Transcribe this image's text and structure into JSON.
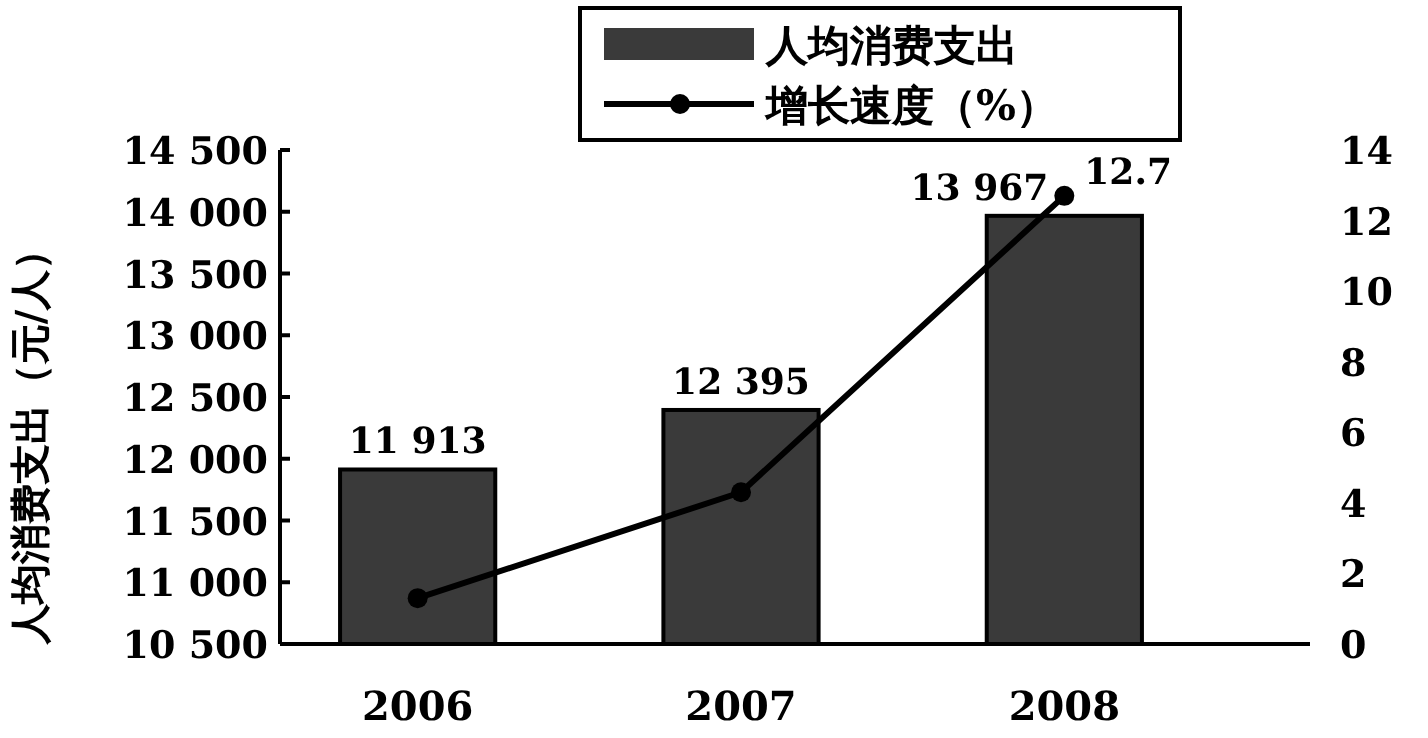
{
  "chart_data": {
    "type": "bar",
    "ylabel": "人均消费支出（元/人）",
    "categories": [
      "2006",
      "2007",
      "2008"
    ],
    "series": [
      {
        "name": "人均消费支出",
        "color": "#3a3a3a",
        "values": [
          11913,
          12395,
          13967
        ],
        "value_labels": [
          "11 913",
          "12 395",
          "13 967"
        ]
      },
      {
        "name": "增长速度（%）",
        "type": "line",
        "axis": "y2",
        "color": "#000000",
        "marker": "circle",
        "values": [
          1.3,
          4.3,
          12.7
        ],
        "value_labels": [
          null,
          null,
          "12.7"
        ]
      }
    ],
    "ylim": [
      10500,
      14500
    ],
    "yticks": [
      {
        "value": 10500,
        "label": "10 500"
      },
      {
        "value": 11000,
        "label": "11 000"
      },
      {
        "value": 11500,
        "label": "11 500"
      },
      {
        "value": 12000,
        "label": "12 000"
      },
      {
        "value": 12500,
        "label": "12 500"
      },
      {
        "value": 13000,
        "label": "13 000"
      },
      {
        "value": 13500,
        "label": "13 500"
      },
      {
        "value": 14000,
        "label": "14 000"
      },
      {
        "value": 14500,
        "label": "14 500"
      }
    ],
    "y2lim": [
      0,
      14
    ],
    "y2ticks": [
      0,
      2,
      4,
      6,
      8,
      10,
      12,
      14
    ],
    "legend": "top",
    "grid": false
  }
}
